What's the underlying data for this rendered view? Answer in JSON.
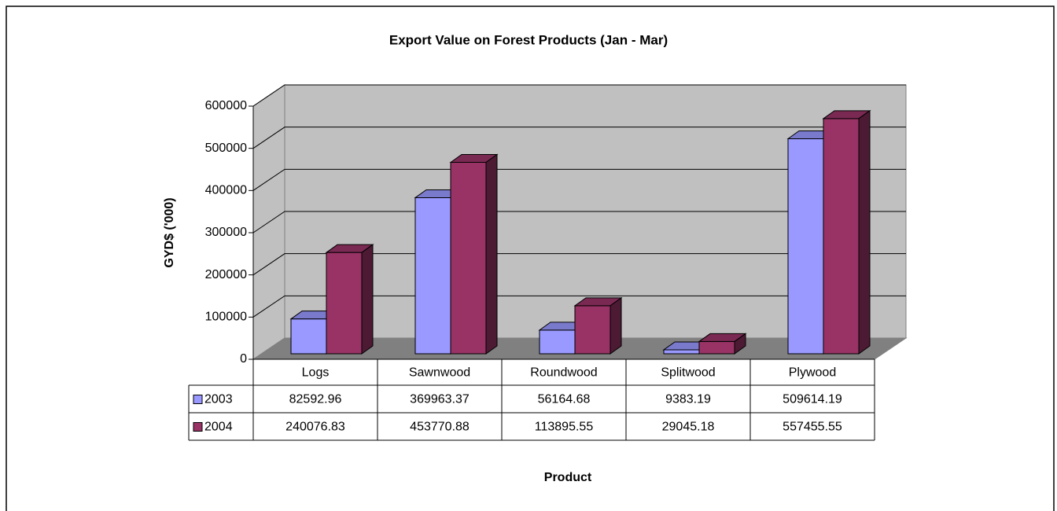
{
  "chart_data": {
    "type": "bar",
    "title": "Export Value on Forest Products (Jan - Mar)",
    "y_label": "GYD$ ('000)",
    "x_label": "Product",
    "categories": [
      "Logs",
      "Sawnwood",
      "Roundwood",
      "Splitwood",
      "Plywood"
    ],
    "series": [
      {
        "name": "2003",
        "color": "#9999ff",
        "values": [
          82592.96,
          369963.37,
          56164.68,
          9383.19,
          509614.19
        ]
      },
      {
        "name": "2004",
        "color": "#993366",
        "values": [
          240076.83,
          453770.88,
          113895.55,
          29045.18,
          557455.55
        ]
      }
    ],
    "ylim": [
      0,
      600000
    ],
    "yticks": [
      0,
      100000,
      200000,
      300000,
      400000,
      500000,
      600000
    ],
    "grid": true
  }
}
